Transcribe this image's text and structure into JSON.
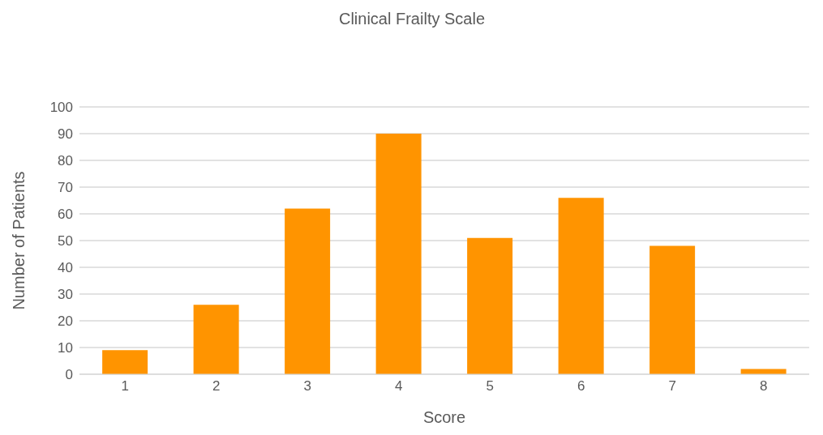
{
  "chart_data": {
    "type": "bar",
    "title": "Clinical Frailty Scale",
    "xlabel": "Score",
    "ylabel": "Number of Patients",
    "categories": [
      "1",
      "2",
      "3",
      "4",
      "5",
      "6",
      "7",
      "8"
    ],
    "values": [
      9,
      26,
      62,
      90,
      51,
      66,
      48,
      2
    ],
    "color": "#ff9400",
    "ylim": [
      0,
      100
    ],
    "yticks": [
      0,
      10,
      20,
      30,
      40,
      50,
      60,
      70,
      80,
      90,
      100
    ],
    "grid": "y",
    "legend": false
  }
}
